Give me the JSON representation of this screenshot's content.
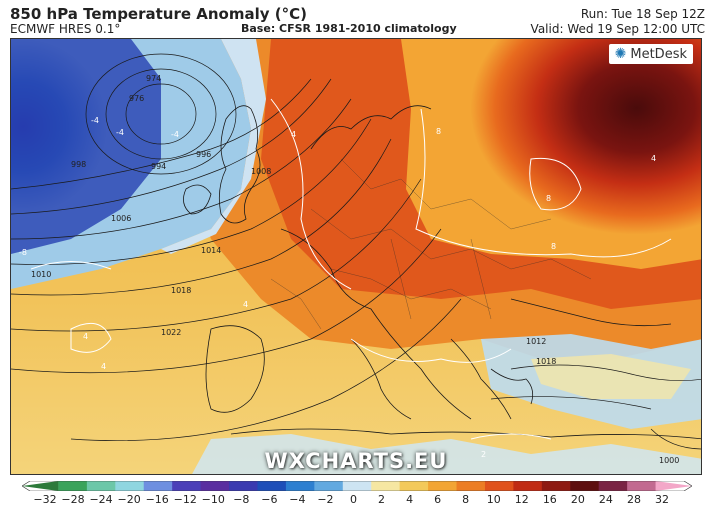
{
  "header": {
    "title": "850 hPa Temperature Anomaly (°C)",
    "model": "ECMWF HRES 0.1°",
    "base": "Base: CFSR 1981-2010 climatology",
    "run": "Run: Tue 18 Sep 12Z",
    "valid": "Valid: Wed 19 Sep 12:00 UTC"
  },
  "logo": {
    "text": "MetDesk"
  },
  "watermark": "WXCHARTS.EU",
  "colorbar": {
    "ticks": [
      "−32",
      "−28",
      "−24",
      "−20",
      "−16",
      "−12",
      "−10",
      "−8",
      "−6",
      "−4",
      "−2",
      "0",
      "2",
      "4",
      "6",
      "8",
      "10",
      "12",
      "16",
      "20",
      "24",
      "28",
      "32"
    ],
    "colors": [
      "#2d7a3a",
      "#3aa35a",
      "#6cc7a8",
      "#8fd6e0",
      "#6e8fe0",
      "#4b3fb8",
      "#5a2ea0",
      "#3a3ab0",
      "#1e4fb8",
      "#2d7fd0",
      "#62a9e0",
      "#cde4f2",
      "#f6e7a2",
      "#f3c95a",
      "#f2a534",
      "#ec7d24",
      "#e0521c",
      "#c02b14",
      "#8e1a12",
      "#5e0f0f",
      "#7a2444",
      "#c26a90",
      "#f3a7c8"
    ]
  },
  "map": {
    "isobar_labels": [
      "974",
      "976",
      "994",
      "996",
      "998",
      "1006",
      "1008",
      "1010",
      "1014",
      "1018",
      "1022",
      "1012",
      "1018",
      "1000"
    ],
    "anomaly_labels": [
      "8",
      "8",
      "8",
      "4",
      "4",
      "4",
      "-4",
      "-4",
      "-8",
      "-4",
      "4",
      "4",
      "2"
    ]
  }
}
